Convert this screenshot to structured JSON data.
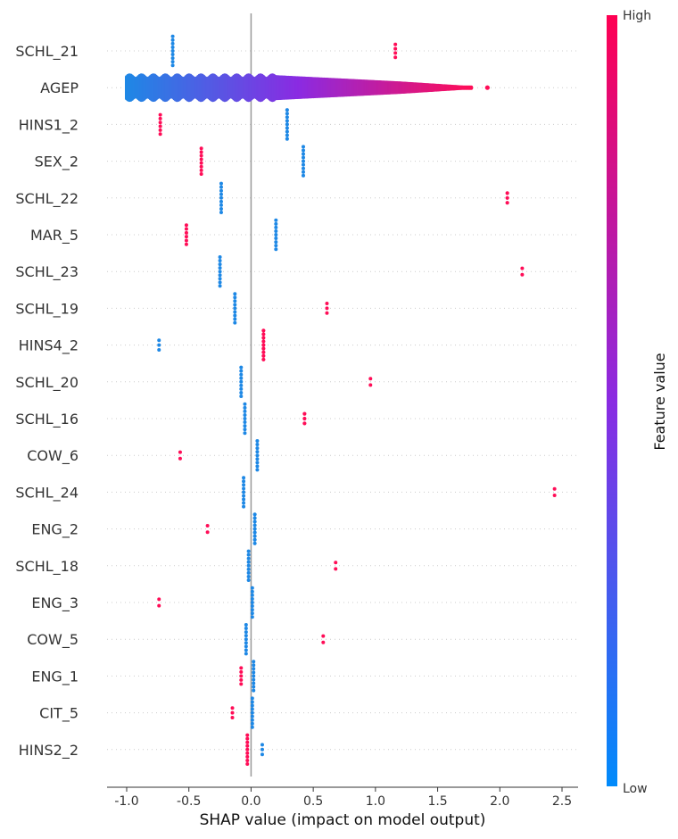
{
  "chart_data": {
    "type": "scatter",
    "subtype": "shap-beeswarm",
    "title": "",
    "xlabel": "SHAP value (impact on model output)",
    "xlim": [
      -1.15,
      2.62
    ],
    "x_ticks": [
      "-1.0",
      "-0.5",
      "0.0",
      "0.5",
      "1.0",
      "1.5",
      "2.0",
      "2.5"
    ],
    "x_tick_values": [
      -1.0,
      -0.5,
      0.0,
      0.5,
      1.0,
      1.5,
      2.0,
      2.5
    ],
    "grid": false,
    "baseline_x": 0.0,
    "colorbar": {
      "title": "Feature value",
      "high_label": "High",
      "low_label": "Low",
      "high_color": "#ff0d57",
      "low_color": "#1e88e5",
      "position": "right"
    },
    "features": [
      {
        "name": "SCHL_21",
        "groups": [
          {
            "x": -0.63,
            "c": 0,
            "n": 9,
            "w": 0.02
          },
          {
            "x": 1.16,
            "c": 1,
            "n": 4,
            "w": 0.02
          }
        ]
      },
      {
        "name": "AGEP",
        "continuous": true,
        "range": [
          -1.0,
          1.77
        ],
        "outliers": [
          1.9
        ]
      },
      {
        "name": "HINS1_2",
        "groups": [
          {
            "x": -0.73,
            "c": 1,
            "n": 6,
            "w": 0.02
          },
          {
            "x": 0.29,
            "c": 0,
            "n": 9,
            "w": 0.03
          }
        ]
      },
      {
        "name": "SEX_2",
        "groups": [
          {
            "x": -0.4,
            "c": 1,
            "n": 8,
            "w": 0.02
          },
          {
            "x": 0.42,
            "c": 0,
            "n": 9,
            "w": 0.02
          }
        ]
      },
      {
        "name": "SCHL_22",
        "groups": [
          {
            "x": -0.24,
            "c": 0,
            "n": 9,
            "w": 0.02
          },
          {
            "x": 2.06,
            "c": 1,
            "n": 3,
            "w": 0.03
          }
        ]
      },
      {
        "name": "MAR_5",
        "groups": [
          {
            "x": -0.52,
            "c": 1,
            "n": 6,
            "w": 0.02
          },
          {
            "x": 0.2,
            "c": 0,
            "n": 9,
            "w": 0.02
          }
        ]
      },
      {
        "name": "SCHL_23",
        "groups": [
          {
            "x": -0.25,
            "c": 0,
            "n": 9,
            "w": 0.02
          },
          {
            "x": 2.18,
            "c": 1,
            "n": 2,
            "w": 0.02
          }
        ]
      },
      {
        "name": "SCHL_19",
        "groups": [
          {
            "x": -0.13,
            "c": 0,
            "n": 9,
            "w": 0.02
          },
          {
            "x": 0.61,
            "c": 1,
            "n": 3,
            "w": 0.02
          }
        ]
      },
      {
        "name": "HINS4_2",
        "groups": [
          {
            "x": -0.74,
            "c": 0,
            "n": 3,
            "w": 0.02
          },
          {
            "x": 0.1,
            "c": 1,
            "n": 9,
            "w": 0.03
          }
        ]
      },
      {
        "name": "SCHL_20",
        "groups": [
          {
            "x": -0.08,
            "c": 0,
            "n": 9,
            "w": 0.02
          },
          {
            "x": 0.96,
            "c": 1,
            "n": 2,
            "w": 0.02
          }
        ]
      },
      {
        "name": "SCHL_16",
        "groups": [
          {
            "x": -0.05,
            "c": 0,
            "n": 9,
            "w": 0.02
          },
          {
            "x": 0.43,
            "c": 1,
            "n": 3,
            "w": 0.03
          }
        ]
      },
      {
        "name": "COW_6",
        "groups": [
          {
            "x": -0.57,
            "c": 1,
            "n": 2,
            "w": 0.02
          },
          {
            "x": 0.05,
            "c": 0,
            "n": 9,
            "w": 0.02
          }
        ]
      },
      {
        "name": "SCHL_24",
        "groups": [
          {
            "x": -0.06,
            "c": 0,
            "n": 9,
            "w": 0.02
          },
          {
            "x": 2.44,
            "c": 1,
            "n": 2,
            "w": 0.02
          }
        ]
      },
      {
        "name": "ENG_2",
        "groups": [
          {
            "x": -0.35,
            "c": 1,
            "n": 2,
            "w": 0.02
          },
          {
            "x": 0.03,
            "c": 0,
            "n": 9,
            "w": 0.03
          }
        ]
      },
      {
        "name": "SCHL_18",
        "groups": [
          {
            "x": -0.02,
            "c": 0,
            "n": 9,
            "w": 0.02
          },
          {
            "x": 0.68,
            "c": 1,
            "n": 2,
            "w": 0.02
          }
        ]
      },
      {
        "name": "ENG_3",
        "groups": [
          {
            "x": -0.74,
            "c": 1,
            "n": 2,
            "w": 0.02
          },
          {
            "x": 0.01,
            "c": 0,
            "n": 9,
            "w": 0.02
          }
        ]
      },
      {
        "name": "COW_5",
        "groups": [
          {
            "x": -0.04,
            "c": 0,
            "n": 9,
            "w": 0.02
          },
          {
            "x": 0.58,
            "c": 1,
            "n": 2,
            "w": 0.02
          }
        ]
      },
      {
        "name": "ENG_1",
        "groups": [
          {
            "x": -0.08,
            "c": 1,
            "n": 5,
            "w": 0.02
          },
          {
            "x": 0.02,
            "c": 0,
            "n": 9,
            "w": 0.02
          }
        ]
      },
      {
        "name": "CIT_5",
        "groups": [
          {
            "x": -0.15,
            "c": 1,
            "n": 3,
            "w": 0.02
          },
          {
            "x": 0.01,
            "c": 0,
            "n": 9,
            "w": 0.02
          }
        ]
      },
      {
        "name": "HINS2_2",
        "groups": [
          {
            "x": -0.03,
            "c": 1,
            "n": 9,
            "w": 0.02
          },
          {
            "x": 0.09,
            "c": 0,
            "n": 3,
            "w": 0.02
          }
        ]
      }
    ]
  }
}
